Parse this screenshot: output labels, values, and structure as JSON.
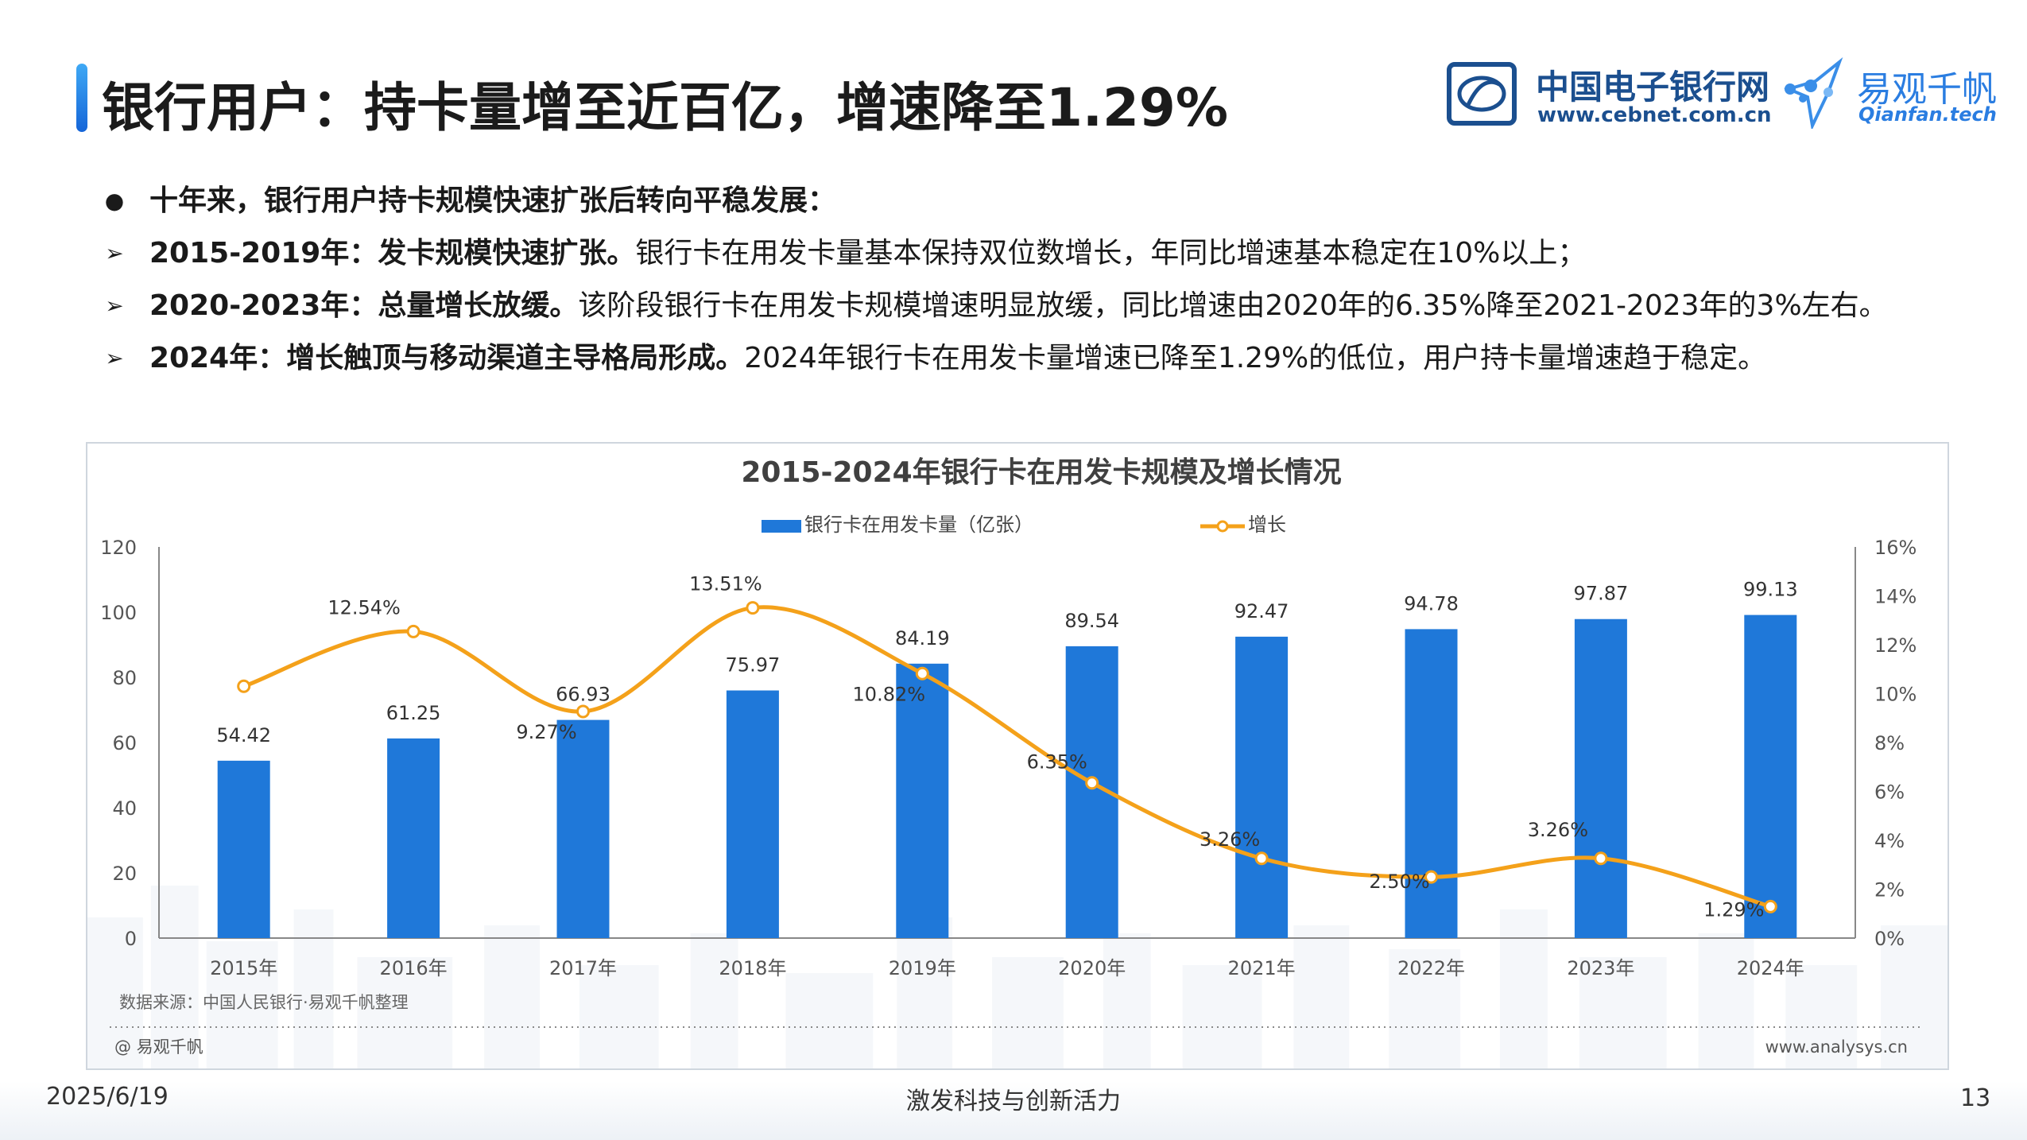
{
  "header": {
    "title": "银行用户：持卡量增至近百亿，增速降至1.29%",
    "logo1": {
      "name": "中国电子银行网",
      "url": "www.cebnet.com.cn"
    },
    "logo2": {
      "name": "易观千帆",
      "url": "Qianfan.tech"
    }
  },
  "bullets": [
    {
      "marker": "●",
      "bold": "十年来，银行用户持卡规模快速扩张后转向平稳发展：",
      "text": ""
    },
    {
      "marker": "➢",
      "bold": "2015-2019年：发卡规模快速扩张。",
      "text": "银行卡在用发卡量基本保持双位数增长，年同比增速基本稳定在10%以上；"
    },
    {
      "marker": "➢",
      "bold": "2020-2023年：总量增长放缓。",
      "text": "该阶段银行卡在用发卡规模增速明显放缓，同比增速由2020年的6.35%降至2021-2023年的3%左右。"
    },
    {
      "marker": "➢",
      "bold": "2024年：增长触顶与移动渠道主导格局形成。",
      "text": "2024年银行卡在用发卡量增速已降至1.29%的低位，用户持卡量增速趋于稳定。"
    }
  ],
  "chart_data": {
    "type": "bar+line",
    "title": "2015-2024年银行卡在用发卡规模及增长情况",
    "categories": [
      "2015年",
      "2016年",
      "2017年",
      "2018年",
      "2019年",
      "2020年",
      "2021年",
      "2022年",
      "2023年",
      "2024年"
    ],
    "series": [
      {
        "name": "银行卡在用发卡量（亿张）",
        "type": "bar",
        "axis": "left",
        "color": "#1f78d9",
        "values": [
          54.42,
          61.25,
          66.93,
          75.97,
          84.19,
          89.54,
          92.47,
          94.78,
          97.87,
          99.13
        ],
        "labels": [
          "54.42",
          "61.25",
          "66.93",
          "75.97",
          "84.19",
          "89.54",
          "92.47",
          "94.78",
          "97.87",
          "99.13"
        ]
      },
      {
        "name": "增长",
        "type": "line",
        "axis": "right",
        "color": "#f4a11a",
        "values": [
          10.3,
          12.54,
          9.27,
          13.51,
          10.82,
          6.35,
          3.26,
          2.5,
          3.26,
          1.29
        ],
        "labels": [
          "",
          "12.54%",
          "9.27%",
          "13.51%",
          "10.82%",
          "6.35%",
          "3.26%",
          "2.50%",
          "3.26%",
          "1.29%"
        ]
      }
    ],
    "y_left": {
      "min": 0,
      "max": 120,
      "ticks": [
        "0",
        "20",
        "40",
        "60",
        "80",
        "100",
        "120"
      ]
    },
    "y_right": {
      "min": 0,
      "max": 16,
      "ticks": [
        "0%",
        "2%",
        "4%",
        "6%",
        "8%",
        "10%",
        "12%",
        "14%",
        "16%"
      ]
    },
    "legend_position": "top-center",
    "grid": false,
    "source": "数据来源：中国人民银行·易观千帆整理",
    "brand": "@ 易观千帆",
    "site": "www.analysys.cn"
  },
  "footer": {
    "date": "2025/6/19",
    "slogan": "激发科技与创新活力",
    "page": "13"
  }
}
